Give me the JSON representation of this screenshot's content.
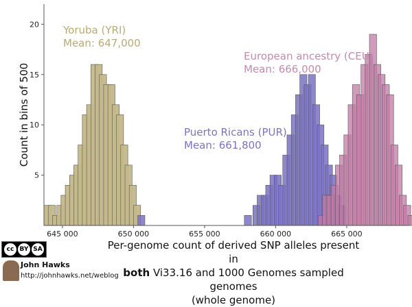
{
  "chart_data": {
    "type": "bar",
    "ylabel": "Count in bins of 500",
    "xlabel_parts": {
      "line1": "Per-genome count of derived SNP alleles present in",
      "line2_bold": "both",
      "line2_rest": " Vi33.16 and 1000 Genomes sampled genomes",
      "line3": "(whole genome)"
    },
    "xlim": [
      643700,
      669400
    ],
    "ylim": [
      0,
      22
    ],
    "bin_width": 500,
    "x_ticks": [
      645000,
      650000,
      655000,
      660000,
      665000
    ],
    "x_tick_labels": [
      "645 000",
      "650 000",
      "655 000",
      "660 000",
      "665 000"
    ],
    "y_ticks": [
      5,
      10,
      15,
      20
    ],
    "grid": false,
    "series": [
      {
        "name": "Yoruba (YRI)",
        "mean_label": "Mean: 647,000",
        "color": "#c4b88a",
        "text_color": "#b8ab76",
        "opacity": 0.95,
        "x": [
          643700,
          644000,
          644300,
          644600,
          644900,
          645200,
          645500,
          645800,
          646100,
          646400,
          646700,
          647000,
          647300,
          647600,
          647900,
          648200,
          648500,
          648800,
          649100,
          649400,
          649700,
          650000
        ],
        "counts": [
          2,
          2,
          1,
          2,
          3,
          4,
          5,
          6,
          8,
          11,
          12,
          16,
          16,
          15,
          14,
          14,
          12,
          11,
          8,
          6,
          4,
          2
        ]
      },
      {
        "name": "Puerto Ricans (PUR)",
        "mean_label": "Mean: 661,800",
        "color": "#7a72c2",
        "text_color": "#7d74bf",
        "opacity": 0.85,
        "x": [
          650300,
          657800,
          658400,
          658700,
          659000,
          659300,
          659600,
          659900,
          660200,
          660500,
          660800,
          661100,
          661400,
          661700,
          662000,
          662300,
          662600,
          662900,
          663200,
          663500,
          663800,
          664100,
          664400
        ],
        "counts": [
          1,
          1,
          2,
          3,
          3,
          4,
          5,
          5,
          4,
          7,
          9,
          11,
          13,
          15,
          14,
          15,
          12,
          10,
          8,
          6,
          5,
          3,
          2
        ]
      },
      {
        "name": "European ancestry (CEU)",
        "mean_label": "Mean: 666,000",
        "color": "#c27aa6",
        "text_color": "#c28bb0",
        "opacity": 0.75,
        "x": [
          663000,
          663300,
          663600,
          663900,
          664200,
          664500,
          664800,
          665100,
          665400,
          665700,
          666000,
          666300,
          666600,
          666900,
          667200,
          667500,
          667800,
          668100,
          668400,
          668700,
          669000,
          669300
        ],
        "counts": [
          1,
          3,
          3,
          4,
          6,
          7,
          9,
          12,
          14,
          13,
          16,
          17,
          19,
          16,
          15,
          14,
          13,
          8,
          6,
          3,
          2,
          1
        ]
      }
    ]
  },
  "credit": {
    "license_badge": "cc by sa",
    "cc": "cc",
    "by": "BY",
    "sa": "SA",
    "author": "John Hawks",
    "url": "http://johnhawks.net/weblog"
  }
}
